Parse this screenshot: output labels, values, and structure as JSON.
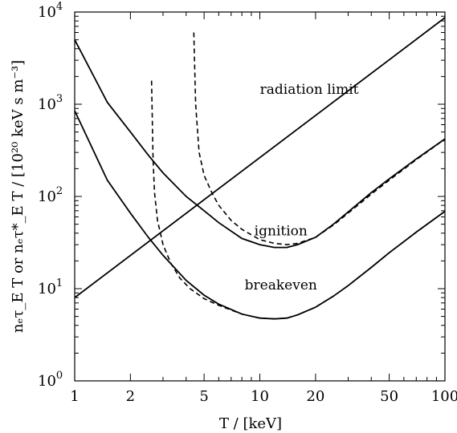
{
  "chart_data": {
    "type": "line",
    "title": "",
    "xlabel": "T / [keV]",
    "ylabel": "nₑτ_E T  or  nₑτ*_E T / [10²⁰ keV s m⁻³]",
    "x_scale": "log",
    "y_scale": "log",
    "xlim": [
      1,
      100
    ],
    "ylim": [
      1,
      10000
    ],
    "grid": false,
    "x_ticks": [
      {
        "value": 1,
        "label": "1"
      },
      {
        "value": 2,
        "label": "2"
      },
      {
        "value": 5,
        "label": "5"
      },
      {
        "value": 10,
        "label": "10"
      },
      {
        "value": 20,
        "label": "20"
      },
      {
        "value": 50,
        "label": "50"
      },
      {
        "value": 100,
        "label": "100"
      }
    ],
    "y_ticks": [
      {
        "value": 1,
        "base": "10",
        "exp": "0"
      },
      {
        "value": 10,
        "base": "10",
        "exp": "1"
      },
      {
        "value": 100,
        "base": "10",
        "exp": "2"
      },
      {
        "value": 1000,
        "base": "10",
        "exp": "3"
      },
      {
        "value": 10000,
        "base": "10",
        "exp": "4"
      }
    ],
    "annotations": [
      {
        "text": "radiation limit",
        "x": 18.5,
        "y": 1300
      },
      {
        "text": "ignition",
        "x": 13,
        "y": 38
      },
      {
        "text": "breakeven",
        "x": 13,
        "y": 9.8
      }
    ],
    "series": [
      {
        "style": "solid",
        "x": [
          1,
          100
        ],
        "y": [
          8,
          8700
        ]
      },
      {
        "style": "solid",
        "x": [
          1,
          1.5,
          2,
          2.5,
          3,
          4,
          5,
          6,
          8,
          10,
          12,
          14,
          16,
          20,
          25,
          30,
          40,
          50,
          70,
          100
        ],
        "y": [
          5000,
          1050,
          500,
          280,
          180,
          100,
          70,
          52,
          35,
          30,
          28,
          28,
          30,
          36,
          50,
          68,
          110,
          155,
          255,
          420
        ]
      },
      {
        "style": "dashed",
        "x": [
          4.4,
          4.5,
          4.7,
          5,
          5.5,
          6,
          7,
          8,
          10,
          12,
          14,
          16,
          20,
          25,
          30,
          40,
          50,
          70,
          100
        ],
        "y": [
          6000,
          1000,
          300,
          170,
          110,
          80,
          55,
          44,
          34,
          31,
          30,
          31,
          36,
          49,
          66,
          106,
          150,
          250,
          420
        ]
      },
      {
        "style": "solid",
        "x": [
          1,
          1.5,
          2,
          2.5,
          3,
          4,
          5,
          6,
          8,
          10,
          12,
          14,
          16,
          20,
          25,
          30,
          40,
          50,
          70,
          100
        ],
        "y": [
          850,
          150,
          66,
          36,
          23,
          12.3,
          8.5,
          6.8,
          5.3,
          4.8,
          4.7,
          4.8,
          5.2,
          6.3,
          8.3,
          10.8,
          17,
          24.5,
          41,
          69
        ]
      },
      {
        "style": "dashed",
        "x": [
          2.6,
          2.65,
          2.7,
          2.8,
          3,
          3.3,
          3.7,
          4.2,
          5,
          6,
          8,
          10,
          12,
          14,
          16,
          20,
          25,
          30,
          40,
          50,
          70,
          100
        ],
        "y": [
          1800,
          250,
          110,
          55,
          30,
          19,
          13,
          10,
          7.8,
          6.6,
          5.3,
          4.8,
          4.7,
          4.8,
          5.2,
          6.3,
          8.3,
          10.8,
          17,
          24.5,
          41,
          69
        ]
      }
    ]
  }
}
